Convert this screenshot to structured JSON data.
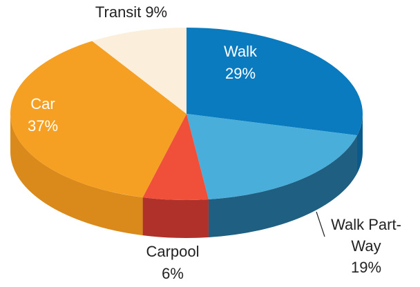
{
  "chart_data": {
    "type": "pie",
    "categories": [
      "Walk",
      "Walk Part-Way",
      "Carpool",
      "Car",
      "Transit"
    ],
    "values": [
      29,
      19,
      6,
      37,
      9
    ],
    "value_labels": [
      "29%",
      "19%",
      "6%",
      "37%",
      "9%"
    ],
    "colors": [
      "#0a7bbf",
      "#4aaedb",
      "#f0503a",
      "#f5a023",
      "#fbefdc"
    ],
    "side_colors": [
      "#0b5a8c",
      "#1f5f82",
      "#b0302a",
      "#d98a1a",
      "#d9ccb8"
    ]
  }
}
